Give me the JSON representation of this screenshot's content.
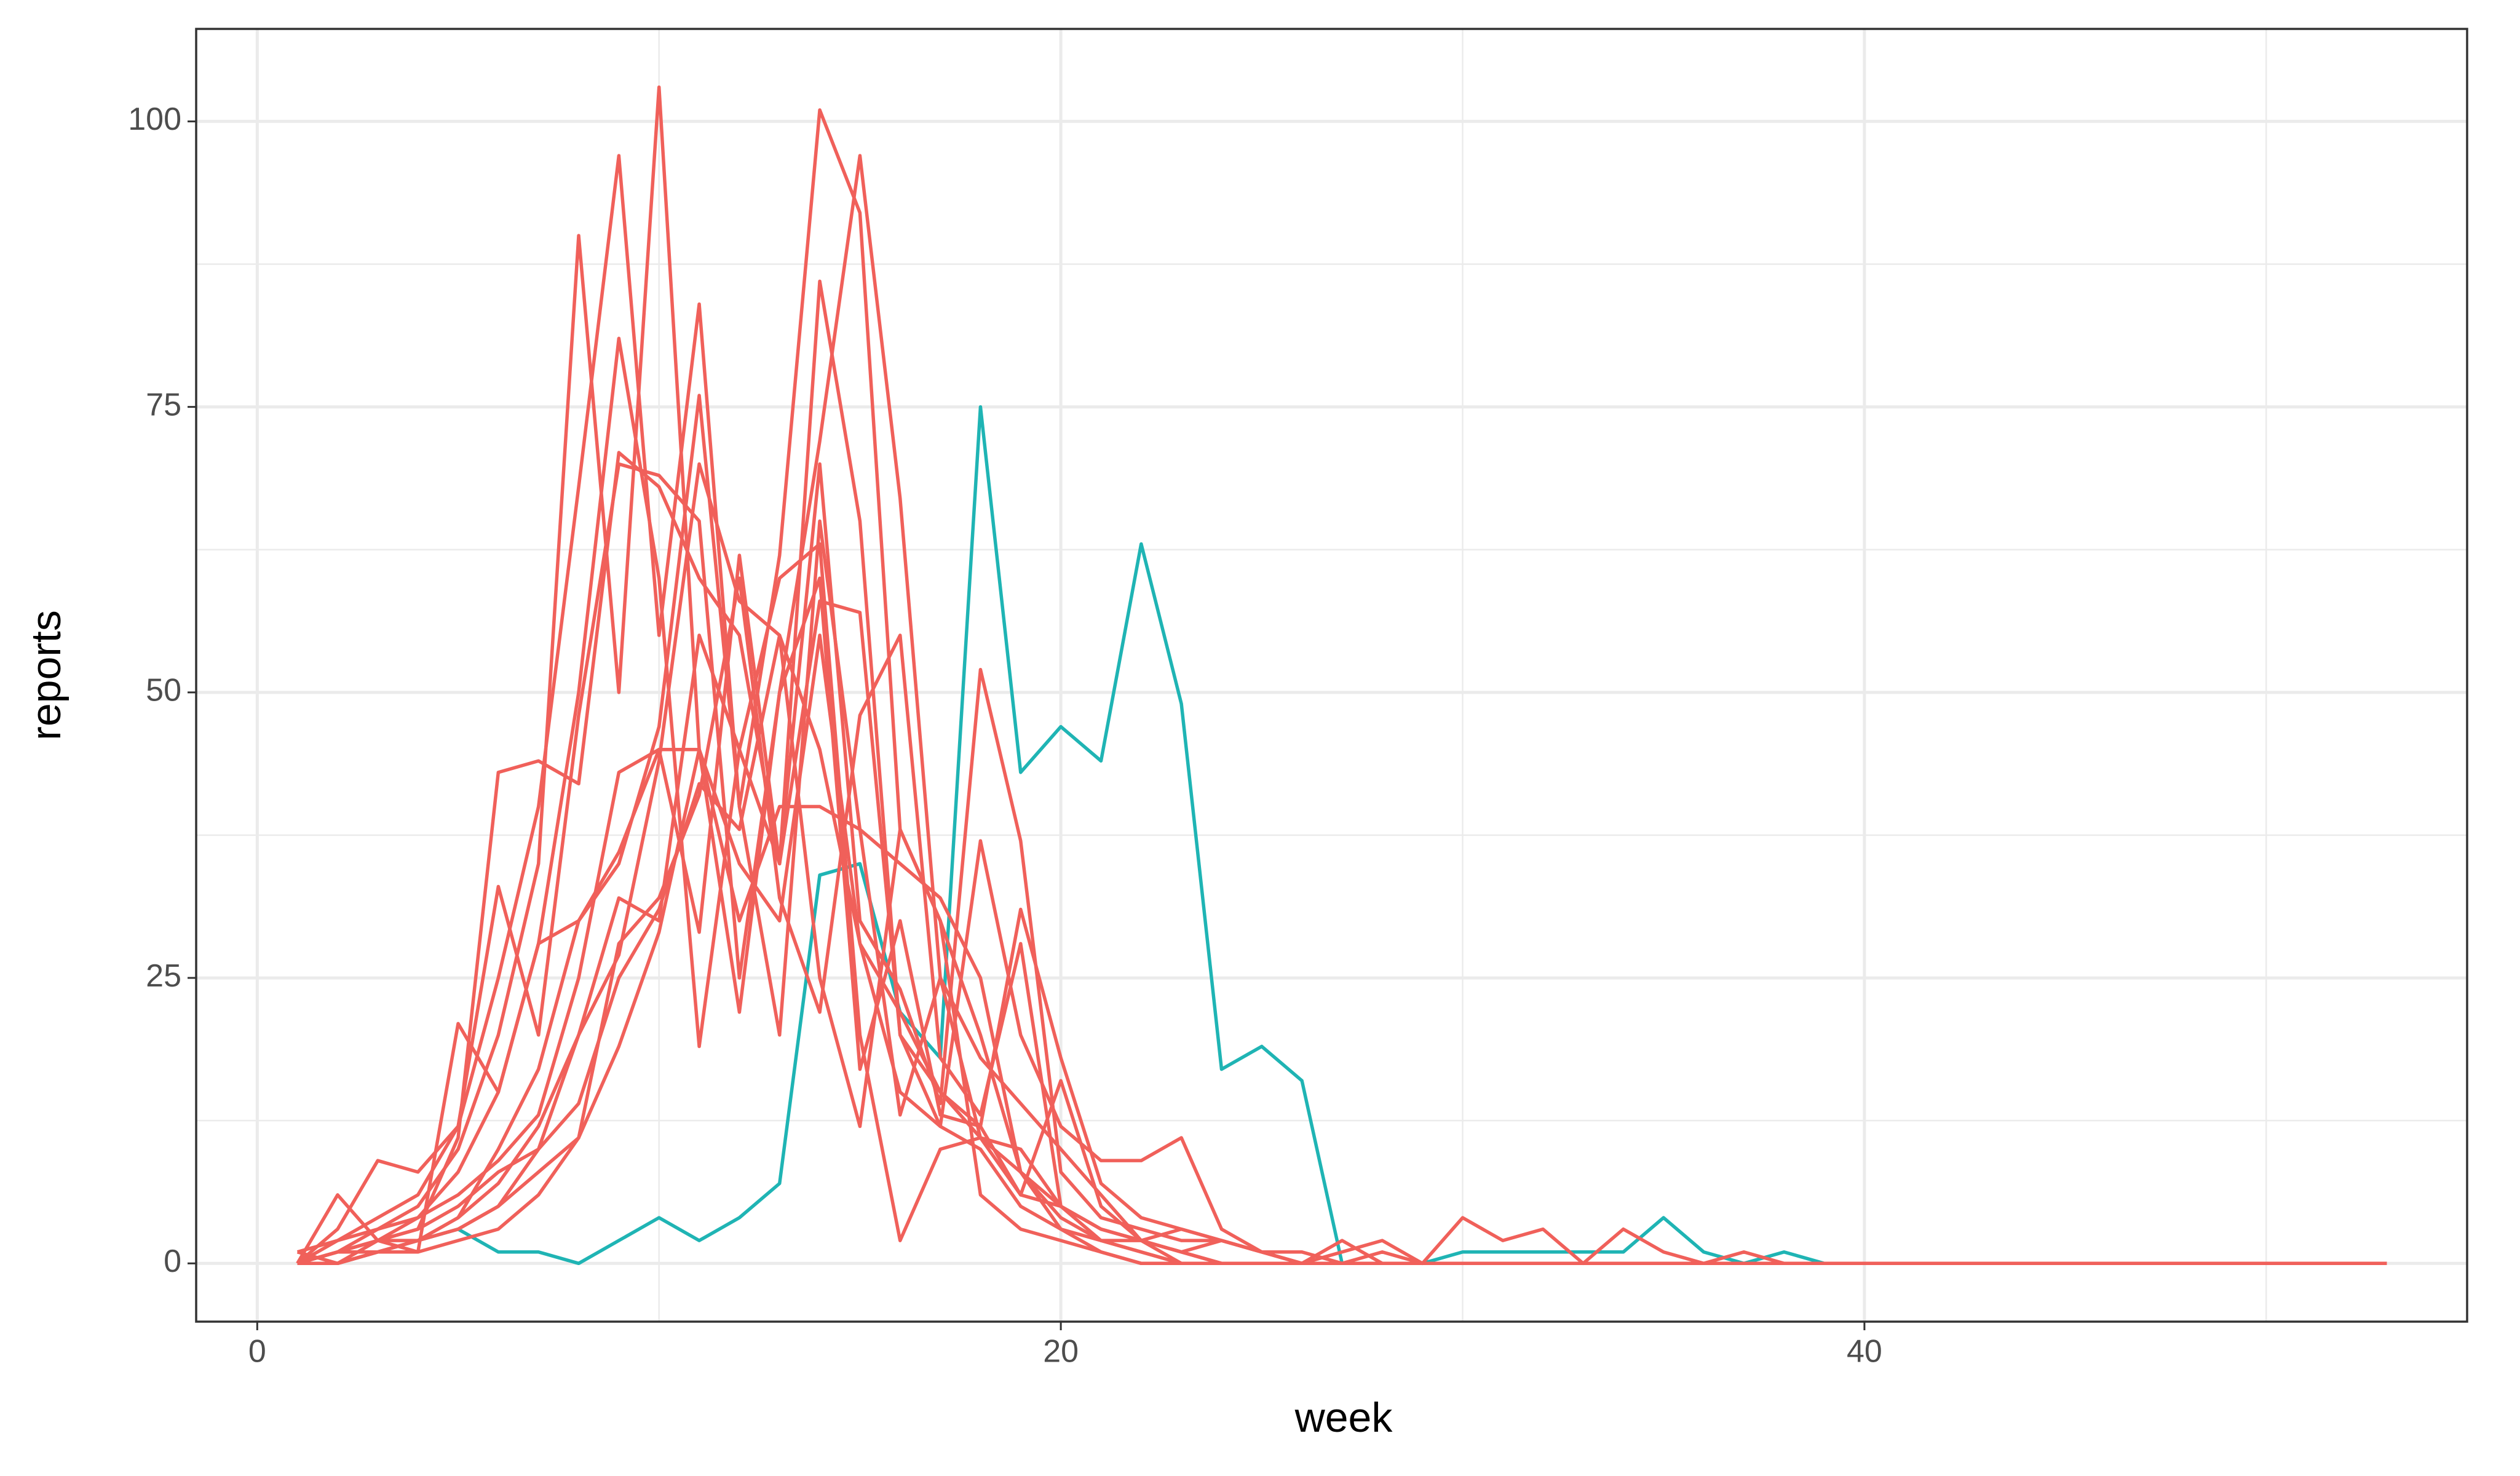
{
  "chart_data": {
    "type": "line",
    "x_label": "week",
    "y_label": "reports",
    "x": [
      1,
      2,
      3,
      4,
      5,
      6,
      7,
      8,
      9,
      10,
      11,
      12,
      13,
      14,
      15,
      16,
      17,
      18,
      19,
      20,
      21,
      22,
      23,
      24,
      25,
      26,
      27,
      28,
      29,
      30,
      31,
      32,
      33,
      34,
      35,
      36,
      37,
      38,
      39,
      40,
      41,
      42,
      43,
      44,
      45,
      46,
      47,
      48,
      49,
      50,
      51,
      52,
      53
    ],
    "series": [
      {
        "color": "#1fb4b4",
        "values": [
          0,
          0,
          1,
          2,
          3,
          1,
          1,
          0,
          2,
          4,
          2,
          4,
          7,
          34,
          35,
          22,
          18,
          75,
          43,
          47,
          44,
          63,
          49,
          17,
          19,
          16,
          0,
          0,
          0,
          1,
          1,
          1,
          1,
          1,
          4,
          1,
          0,
          1,
          0,
          0,
          0,
          0,
          0,
          0,
          0,
          0,
          0,
          0,
          0,
          0,
          0,
          0,
          0
        ]
      },
      {
        "color": "#f0605a",
        "values": [
          0,
          1,
          3,
          5,
          10,
          20,
          35,
          90,
          50,
          103,
          45,
          35,
          30,
          55,
          28,
          15,
          12,
          10,
          5,
          3,
          2,
          1,
          0,
          0,
          0,
          0,
          0,
          0,
          0,
          0,
          0,
          0,
          0,
          0,
          0,
          0,
          0,
          0,
          0,
          0,
          0,
          0,
          0,
          0,
          0,
          0,
          0,
          0,
          0,
          0,
          0,
          0,
          0
        ]
      },
      {
        "color": "#f0605a",
        "values": [
          0,
          2,
          4,
          6,
          12,
          25,
          40,
          68,
          97,
          55,
          84,
          40,
          62,
          101,
          92,
          38,
          30,
          20,
          8,
          4,
          2,
          1,
          0,
          0,
          0,
          0,
          0,
          0,
          0,
          0,
          0,
          0,
          0,
          0,
          0,
          0,
          0,
          0,
          0,
          0,
          0,
          0,
          0,
          0,
          0,
          0,
          0,
          0,
          0,
          0,
          0,
          0,
          0
        ]
      },
      {
        "color": "#f0605a",
        "values": [
          1,
          0,
          2,
          4,
          8,
          15,
          28,
          50,
          81,
          60,
          19,
          45,
          35,
          86,
          65,
          20,
          15,
          12,
          6,
          5,
          3,
          2,
          1,
          0,
          0,
          0,
          0,
          0,
          0,
          0,
          0,
          0,
          0,
          0,
          0,
          0,
          0,
          0,
          0,
          0,
          0,
          0,
          0,
          0,
          0,
          0,
          0,
          0,
          0,
          0,
          0,
          0,
          0
        ]
      },
      {
        "color": "#f0605a",
        "values": [
          0,
          3,
          9,
          8,
          12,
          33,
          20,
          48,
          70,
          69,
          65,
          25,
          50,
          72,
          97,
          67,
          25,
          18,
          14,
          10,
          6,
          2,
          1,
          0,
          0,
          0,
          0,
          0,
          0,
          0,
          0,
          0,
          0,
          0,
          0,
          0,
          0,
          0,
          0,
          0,
          0,
          0,
          0,
          0,
          0,
          0,
          0,
          0,
          0,
          0,
          0,
          0,
          0
        ]
      },
      {
        "color": "#f0605a",
        "values": [
          0,
          6,
          2,
          1,
          21,
          15,
          28,
          30,
          36,
          45,
          45,
          30,
          40,
          40,
          38,
          13,
          25,
          11,
          10,
          5,
          3,
          2,
          3,
          2,
          1,
          0,
          0,
          0,
          0,
          0,
          0,
          0,
          0,
          0,
          0,
          0,
          0,
          0,
          0,
          0,
          0,
          0,
          0,
          0,
          0,
          0,
          0,
          0,
          0,
          0,
          0,
          0,
          0
        ]
      },
      {
        "color": "#f0605a",
        "values": [
          0,
          1,
          2,
          3,
          11,
          43,
          44,
          42,
          71,
          68,
          60,
          55,
          35,
          58,
          57,
          20,
          12,
          37,
          20,
          12,
          9,
          9,
          11,
          3,
          1,
          0,
          2,
          0,
          0,
          0,
          0,
          0,
          0,
          0,
          0,
          0,
          0,
          0,
          0,
          0,
          0,
          0,
          0,
          0,
          0,
          0,
          0,
          0,
          0,
          0,
          0,
          0,
          0
        ]
      },
      {
        "color": "#f0605a",
        "values": [
          0,
          0,
          1,
          2,
          4,
          10,
          17,
          30,
          35,
          47,
          76,
          40,
          20,
          65,
          38,
          35,
          32,
          25,
          8,
          3,
          1,
          0,
          0,
          0,
          0,
          0,
          0,
          0,
          0,
          0,
          0,
          0,
          0,
          0,
          0,
          0,
          0,
          0,
          0,
          0,
          0,
          0,
          0,
          0,
          0,
          0,
          0,
          0,
          0,
          0,
          0,
          0,
          0
        ]
      },
      {
        "color": "#f0605a",
        "values": [
          1,
          2,
          3,
          4,
          6,
          9,
          13,
          25,
          43,
          45,
          29,
          62,
          35,
          70,
          30,
          24,
          14,
          52,
          37,
          8,
          4,
          3,
          2,
          2,
          1,
          0,
          0,
          1,
          0,
          0,
          0,
          0,
          0,
          0,
          0,
          0,
          0,
          0,
          0,
          0,
          0,
          0,
          0,
          0,
          0,
          0,
          0,
          0,
          0,
          0,
          0,
          0,
          0
        ]
      },
      {
        "color": "#f0605a",
        "values": [
          0,
          1,
          2,
          3,
          5,
          8,
          10,
          20,
          27,
          44,
          70,
          58,
          55,
          25,
          12,
          38,
          30,
          6,
          3,
          2,
          1,
          0,
          0,
          0,
          0,
          0,
          0,
          0,
          0,
          0,
          0,
          0,
          0,
          0,
          0,
          0,
          0,
          0,
          0,
          0,
          0,
          0,
          0,
          0,
          0,
          0,
          0,
          0,
          0,
          0,
          0,
          0,
          0
        ]
      },
      {
        "color": "#f0605a",
        "values": [
          0,
          0,
          1,
          2,
          4,
          7,
          12,
          20,
          32,
          30,
          55,
          45,
          60,
          63,
          20,
          2,
          10,
          11,
          6,
          16,
          5,
          2,
          1,
          0,
          0,
          0,
          0,
          0,
          0,
          0,
          0,
          0,
          0,
          0,
          0,
          0,
          0,
          0,
          0,
          0,
          0,
          0,
          0,
          0,
          0,
          0,
          0,
          0,
          0,
          0,
          0,
          0,
          0
        ]
      },
      {
        "color": "#f0605a",
        "values": [
          0,
          1,
          2,
          2,
          3,
          5,
          8,
          11,
          28,
          32,
          41,
          60,
          32,
          22,
          48,
          55,
          18,
          13,
          28,
          5,
          2,
          2,
          0,
          0,
          0,
          0,
          0,
          0,
          0,
          0,
          0,
          0,
          0,
          0,
          0,
          0,
          0,
          0,
          0,
          0,
          0,
          0,
          0,
          0,
          0,
          0,
          0,
          0,
          0,
          0,
          0,
          0,
          0
        ]
      },
      {
        "color": "#f0605a",
        "values": [
          0,
          0,
          1,
          1,
          2,
          3,
          6,
          11,
          19,
          29,
          45,
          22,
          50,
          60,
          17,
          30,
          13,
          12,
          31,
          18,
          7,
          4,
          3,
          2,
          1,
          1,
          0,
          0,
          0,
          0,
          0,
          0,
          0,
          0,
          0,
          0,
          0,
          0,
          0,
          0,
          0,
          0,
          0,
          0,
          0,
          0,
          0,
          0,
          0,
          0,
          0,
          0,
          0
        ]
      },
      {
        "color": "#f0605a",
        "values": [
          0,
          1,
          1,
          2,
          3,
          5,
          10,
          14,
          25,
          31,
          42,
          38,
          55,
          45,
          28,
          22,
          15,
          11,
          8,
          5,
          3,
          2,
          1,
          2,
          1,
          0,
          1,
          2,
          0,
          4,
          2,
          3,
          0,
          3,
          1,
          0,
          1,
          0,
          0,
          0,
          0,
          0,
          0,
          0,
          0,
          0,
          0,
          0,
          0,
          0,
          0,
          0,
          0
        ]
      }
    ],
    "xlim": [
      -1.52,
      55.0
    ],
    "ylim": [
      -5.1,
      108.1
    ],
    "xticks": [
      0,
      20,
      40
    ],
    "yticks": [
      0,
      25,
      50,
      75,
      100
    ],
    "xminor": [
      10,
      30,
      50
    ],
    "yminor": [
      12.5,
      37.5,
      62.5,
      87.5
    ],
    "grid": true
  }
}
